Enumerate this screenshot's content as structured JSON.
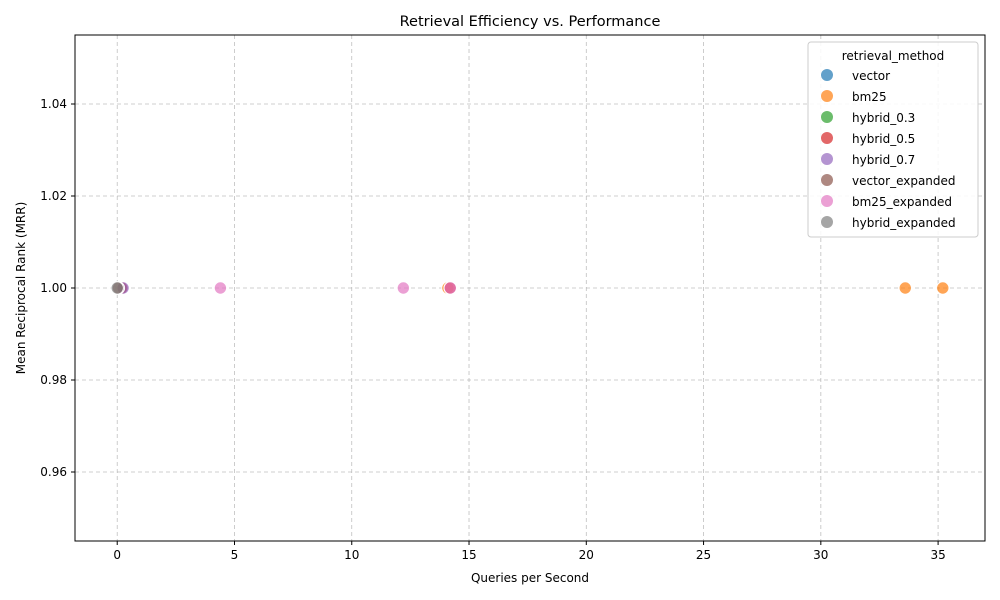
{
  "chart_data": {
    "type": "scatter",
    "title": "Retrieval Efficiency vs. Performance",
    "xlabel": "Queries per Second",
    "ylabel": "Mean Reciprocal Rank (MRR)",
    "xlim": [
      -1.8,
      37.0
    ],
    "ylim": [
      0.945,
      1.055
    ],
    "xticks": [
      0,
      5,
      10,
      15,
      20,
      25,
      30,
      35
    ],
    "yticks": [
      0.96,
      0.98,
      1.0,
      1.02,
      1.04
    ],
    "xtick_labels": [
      "0",
      "5",
      "10",
      "15",
      "20",
      "25",
      "30",
      "35"
    ],
    "ytick_labels": [
      "0.96",
      "0.98",
      "1.00",
      "1.02",
      "1.04"
    ],
    "grid": true,
    "legend": {
      "title": "retrieval_method",
      "placement": "top-right"
    },
    "series": [
      {
        "name": "vector",
        "color": "#1f77b4",
        "x": [
          0.05,
          0.1
        ],
        "y": [
          1.0,
          1.0
        ]
      },
      {
        "name": "bm25",
        "color": "#ff7f0e",
        "x": [
          14.1,
          33.6,
          35.2
        ],
        "y": [
          1.0,
          1.0,
          1.0
        ]
      },
      {
        "name": "hybrid_0.3",
        "color": "#2ca02c",
        "x": [
          0.15
        ],
        "y": [
          1.0
        ]
      },
      {
        "name": "hybrid_0.5",
        "color": "#d62728",
        "x": [
          0.2,
          14.2
        ],
        "y": [
          1.0,
          1.0
        ]
      },
      {
        "name": "hybrid_0.7",
        "color": "#9467bd",
        "x": [
          0.25
        ],
        "y": [
          1.0
        ]
      },
      {
        "name": "vector_expanded",
        "color": "#8c564b",
        "x": [
          0.05
        ],
        "y": [
          1.0
        ]
      },
      {
        "name": "bm25_expanded",
        "color": "#e377c2",
        "x": [
          4.4,
          12.2,
          14.2
        ],
        "y": [
          1.0,
          1.0,
          1.0
        ]
      },
      {
        "name": "hybrid_expanded",
        "color": "#7f7f7f",
        "x": [
          0.0
        ],
        "y": [
          1.0
        ]
      }
    ]
  }
}
